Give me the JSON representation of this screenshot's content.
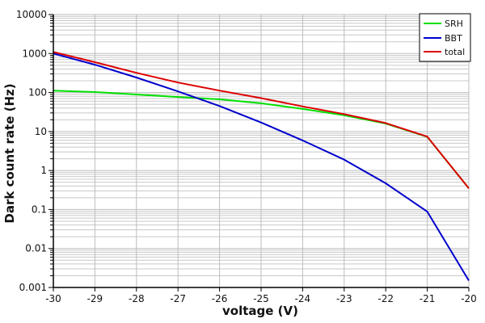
{
  "chart_data": {
    "type": "line",
    "title": "",
    "xlabel": "voltage (V)",
    "ylabel": "Dark count rate (Hz)",
    "xlim": [
      -30,
      -20
    ],
    "ylim": [
      0.001,
      10000
    ],
    "yscale": "log",
    "grid": true,
    "legend_position": "upper right",
    "x_ticks": [
      "-30",
      "-29",
      "-28",
      "-27",
      "-26",
      "-25",
      "-24",
      "-23",
      "-22",
      "-21",
      "-20"
    ],
    "y_ticks": [
      "0.001",
      "0.01",
      "0.1",
      "1",
      "10",
      "100",
      "1000",
      "10000"
    ],
    "x": [
      -30,
      -29,
      -28,
      -27,
      -26,
      -25,
      -24,
      -23,
      -22,
      -21,
      -20
    ],
    "series": [
      {
        "name": "SRH",
        "color": "#00e000",
        "values": [
          112,
          103,
          89,
          77,
          67,
          53,
          38,
          26,
          16,
          7.3,
          0.35
        ]
      },
      {
        "name": "BBT",
        "color": "#0000cc",
        "values": [
          1000,
          518,
          242,
          107,
          45,
          17,
          5.9,
          1.9,
          0.47,
          0.088,
          0.0015
        ]
      },
      {
        "name": "total",
        "color": "#dd0000",
        "values": [
          1100,
          600,
          320,
          180,
          112,
          72,
          44,
          28,
          16.5,
          7.4,
          0.35
        ]
      }
    ]
  },
  "legend": {
    "items": [
      {
        "label": "SRH",
        "color": "#00e000"
      },
      {
        "label": "BBT",
        "color": "#0000cc"
      },
      {
        "label": "total",
        "color": "#dd0000"
      }
    ]
  }
}
